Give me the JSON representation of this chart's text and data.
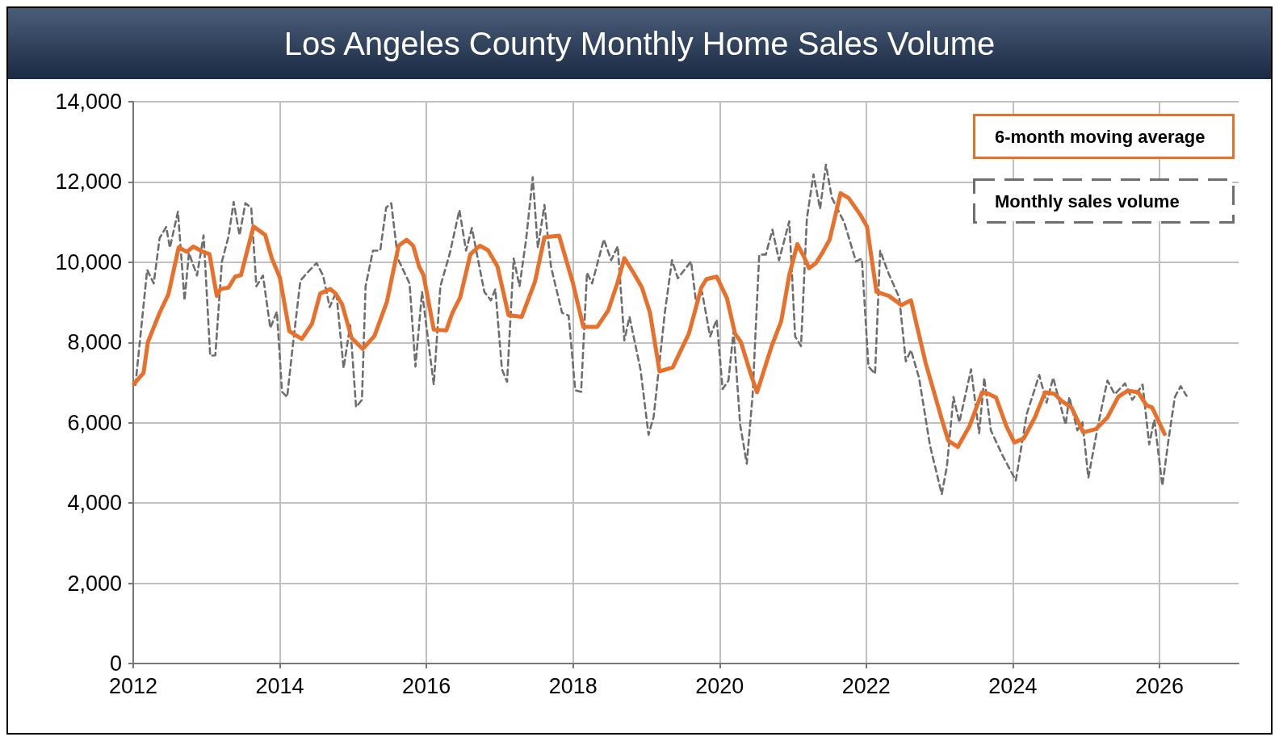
{
  "chart_data": {
    "type": "line",
    "title": "Los Angeles County Monthly Home Sales Volume",
    "xlim": [
      2012,
      2027.08
    ],
    "xticks": [
      2012,
      2014,
      2016,
      2018,
      2020,
      2022,
      2024,
      2026
    ],
    "ylim": [
      0,
      14000
    ],
    "yticks": [
      {
        "value": 0,
        "label": "0"
      },
      {
        "value": 2000,
        "label": "2,000"
      },
      {
        "value": 4000,
        "label": "4,000"
      },
      {
        "value": 6000,
        "label": "6,000"
      },
      {
        "value": 8000,
        "label": "8,000"
      },
      {
        "value": 10000,
        "label": "10,000"
      },
      {
        "value": 12000,
        "label": "12,000"
      },
      {
        "value": 14000,
        "label": "14,000"
      }
    ],
    "grid": true,
    "legend": "top right",
    "marker": "none",
    "series": [
      {
        "name": "6-month moving average",
        "color": "#e8702a",
        "line_style": "solid",
        "x": [
          2012.01,
          2012.14,
          2012.2,
          2012.36,
          2012.48,
          2012.62,
          2012.73,
          2012.82,
          2012.95,
          2013.04,
          2013.14,
          2013.19,
          2013.3,
          2013.39,
          2013.47,
          2013.64,
          2013.8,
          2013.89,
          2014.0,
          2014.13,
          2014.3,
          2014.44,
          2014.55,
          2014.69,
          2014.76,
          2014.85,
          2014.98,
          2015.13,
          2015.29,
          2015.46,
          2015.62,
          2015.73,
          2015.82,
          2015.9,
          2015.96,
          2016.1,
          2016.27,
          2016.35,
          2016.46,
          2016.6,
          2016.73,
          2016.84,
          2016.97,
          2017.12,
          2017.3,
          2017.48,
          2017.61,
          2017.81,
          2018.0,
          2018.14,
          2018.33,
          2018.48,
          2018.61,
          2018.7,
          2018.83,
          2018.94,
          2019.05,
          2019.18,
          2019.36,
          2019.58,
          2019.75,
          2019.82,
          2019.96,
          2020.1,
          2020.21,
          2020.29,
          2020.43,
          2020.51,
          2020.71,
          2020.84,
          2020.95,
          2021.06,
          2021.15,
          2021.22,
          2021.31,
          2021.39,
          2021.5,
          2021.65,
          2021.76,
          2021.92,
          2022.01,
          2022.14,
          2022.31,
          2022.48,
          2022.61,
          2022.81,
          2023.03,
          2023.12,
          2023.25,
          2023.41,
          2023.58,
          2023.67,
          2023.77,
          2023.91,
          2024.02,
          2024.15,
          2024.3,
          2024.44,
          2024.57,
          2024.66,
          2024.8,
          2024.96,
          2025.13,
          2025.29,
          2025.44,
          2025.57,
          2025.71,
          2025.82,
          2025.9,
          2026.07
        ],
        "values": [
          6970,
          7240,
          8010,
          8740,
          9200,
          10370,
          10260,
          10390,
          10260,
          10200,
          9160,
          9330,
          9370,
          9640,
          9680,
          10890,
          10680,
          10100,
          9620,
          8280,
          8090,
          8470,
          9220,
          9330,
          9220,
          8950,
          8110,
          7840,
          8160,
          9010,
          10410,
          10560,
          10410,
          9890,
          9680,
          8320,
          8300,
          8720,
          9120,
          10200,
          10410,
          10300,
          9890,
          8680,
          8640,
          9510,
          10620,
          10660,
          9470,
          8390,
          8390,
          8800,
          9510,
          10100,
          9720,
          9370,
          8740,
          7280,
          7380,
          8220,
          9370,
          9580,
          9640,
          9100,
          8220,
          8010,
          7180,
          6760,
          7910,
          8530,
          9680,
          10450,
          10140,
          9850,
          9970,
          10200,
          10560,
          11720,
          11600,
          11180,
          10890,
          9260,
          9160,
          8930,
          9050,
          7490,
          6090,
          5550,
          5400,
          5920,
          6760,
          6720,
          6630,
          5920,
          5510,
          5610,
          6130,
          6760,
          6720,
          6550,
          6380,
          5760,
          5840,
          6130,
          6650,
          6800,
          6760,
          6440,
          6380,
          5720
        ]
      },
      {
        "name": "Monthly sales volume",
        "color": "#6e6e6e",
        "line_style": "dashed",
        "x": [
          2012.03,
          2012.19,
          2012.28,
          2012.36,
          2012.45,
          2012.5,
          2012.61,
          2012.7,
          2012.76,
          2012.87,
          2012.96,
          2013.05,
          2013.12,
          2013.21,
          2013.3,
          2013.37,
          2013.45,
          2013.53,
          2013.61,
          2013.68,
          2013.77,
          2013.87,
          2013.96,
          2014.03,
          2014.1,
          2014.17,
          2014.28,
          2014.36,
          2014.5,
          2014.59,
          2014.68,
          2014.77,
          2014.87,
          2014.96,
          2015.04,
          2015.12,
          2015.17,
          2015.27,
          2015.37,
          2015.45,
          2015.52,
          2015.61,
          2015.77,
          2015.85,
          2015.94,
          2016.1,
          2016.19,
          2016.32,
          2016.45,
          2016.54,
          2016.62,
          2016.79,
          2016.88,
          2016.94,
          2017.03,
          2017.1,
          2017.19,
          2017.27,
          2017.36,
          2017.45,
          2017.52,
          2017.61,
          2017.7,
          2017.85,
          2017.94,
          2018.03,
          2018.11,
          2018.19,
          2018.26,
          2018.42,
          2018.52,
          2018.61,
          2018.7,
          2018.77,
          2018.92,
          2019.03,
          2019.1,
          2019.25,
          2019.35,
          2019.43,
          2019.61,
          2019.68,
          2019.76,
          2019.87,
          2019.96,
          2020.04,
          2020.12,
          2020.19,
          2020.28,
          2020.37,
          2020.45,
          2020.54,
          2020.63,
          2020.72,
          2020.81,
          2020.95,
          2021.03,
          2021.11,
          2021.19,
          2021.28,
          2021.37,
          2021.45,
          2021.53,
          2021.7,
          2021.86,
          2021.94,
          2022.03,
          2022.12,
          2022.19,
          2022.3,
          2022.45,
          2022.54,
          2022.61,
          2022.72,
          2022.87,
          2023.03,
          2023.1,
          2023.19,
          2023.27,
          2023.43,
          2023.54,
          2023.61,
          2023.7,
          2023.86,
          2024.04,
          2024.19,
          2024.36,
          2024.46,
          2024.55,
          2024.72,
          2024.77,
          2024.88,
          2024.95,
          2025.03,
          2025.17,
          2025.29,
          2025.39,
          2025.53,
          2025.63,
          2025.77,
          2025.86,
          2025.93,
          2026.04,
          2026.12,
          2026.21,
          2026.29,
          2026.37
        ],
        "values": [
          6940,
          9810,
          9470,
          10600,
          10880,
          10360,
          11260,
          9050,
          10230,
          9670,
          10670,
          7670,
          7680,
          10020,
          10640,
          11500,
          10670,
          11470,
          11360,
          9400,
          9670,
          8360,
          8770,
          6770,
          6640,
          7810,
          9540,
          9710,
          9980,
          9670,
          8880,
          9260,
          7360,
          8430,
          6390,
          6570,
          9400,
          10290,
          10290,
          11360,
          11470,
          10090,
          9470,
          7400,
          9260,
          6950,
          9400,
          10230,
          11300,
          10290,
          10850,
          9260,
          9050,
          9330,
          7330,
          7020,
          10090,
          9400,
          10570,
          12120,
          10360,
          11430,
          9880,
          8740,
          8670,
          6810,
          6770,
          9740,
          9470,
          10570,
          10050,
          10400,
          8050,
          8640,
          7330,
          5700,
          6150,
          8710,
          10050,
          9600,
          10020,
          8980,
          9260,
          8150,
          8570,
          6840,
          7050,
          8290,
          5950,
          4980,
          6700,
          10190,
          10190,
          10810,
          10050,
          11020,
          8150,
          7910,
          11090,
          12190,
          11330,
          12430,
          11610,
          10990,
          10020,
          10090,
          7400,
          7220,
          10290,
          9740,
          9120,
          7530,
          7810,
          7120,
          5430,
          4220,
          4910,
          6640,
          6010,
          7330,
          5740,
          7120,
          5810,
          5180,
          4560,
          6220,
          7190,
          6500,
          7120,
          5950,
          6640,
          5810,
          6010,
          4630,
          6010,
          7050,
          6710,
          6980,
          6570,
          6950,
          5460,
          6080,
          4430,
          5530,
          6640,
          6910,
          6670
        ]
      }
    ]
  }
}
